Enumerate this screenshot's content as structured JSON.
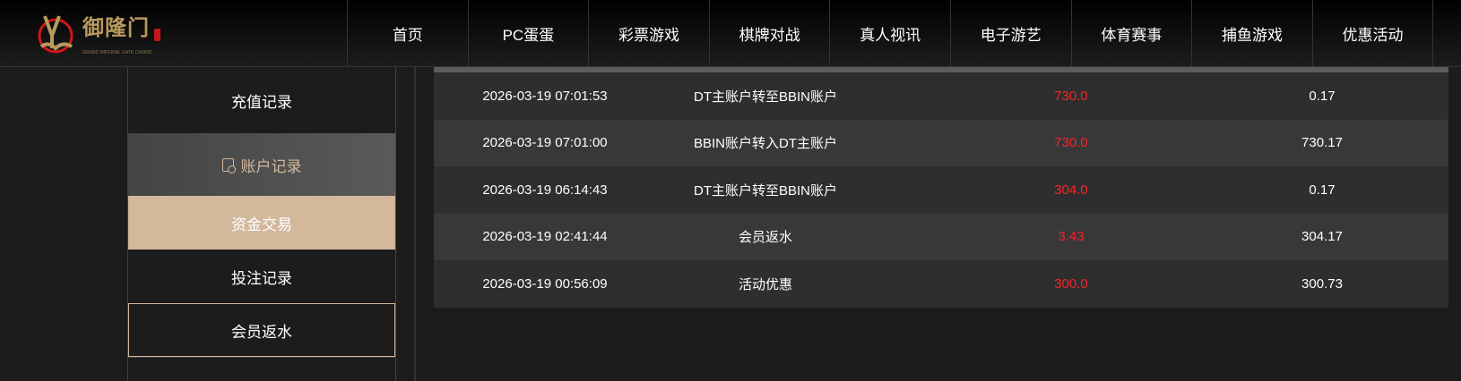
{
  "brand": {
    "name": "御隆门",
    "subtitle": "GRAND IMPERIAL GATE CASINO",
    "accent": "#d3b89c",
    "red": "#f0262b"
  },
  "nav": [
    "首页",
    "PC蛋蛋",
    "彩票游戏",
    "棋牌对战",
    "真人视讯",
    "电子游艺",
    "体育赛事",
    "捕鱼游戏",
    "优惠活动"
  ],
  "sidebar": [
    {
      "label": "充值记录"
    },
    {
      "label": "账户记录",
      "icon": "record-icon"
    },
    {
      "label": "资金交易"
    },
    {
      "label": "投注记录"
    },
    {
      "label": "会员返水"
    }
  ],
  "records": [
    {
      "time": "2026-03-19 07:01:53",
      "desc": "DT主账户转至BBIN账户",
      "amount": "730.0",
      "balance": "0.17"
    },
    {
      "time": "2026-03-19 07:01:00",
      "desc": "BBIN账户转入DT主账户",
      "amount": "730.0",
      "balance": "730.17"
    },
    {
      "time": "2026-03-19 06:14:43",
      "desc": "DT主账户转至BBIN账户",
      "amount": "304.0",
      "balance": "0.17"
    },
    {
      "time": "2026-03-19 02:41:44",
      "desc": "会员返水",
      "amount": "3.43",
      "balance": "304.17"
    },
    {
      "time": "2026-03-19 00:56:09",
      "desc": "活动优惠",
      "amount": "300.0",
      "balance": "300.73"
    }
  ]
}
